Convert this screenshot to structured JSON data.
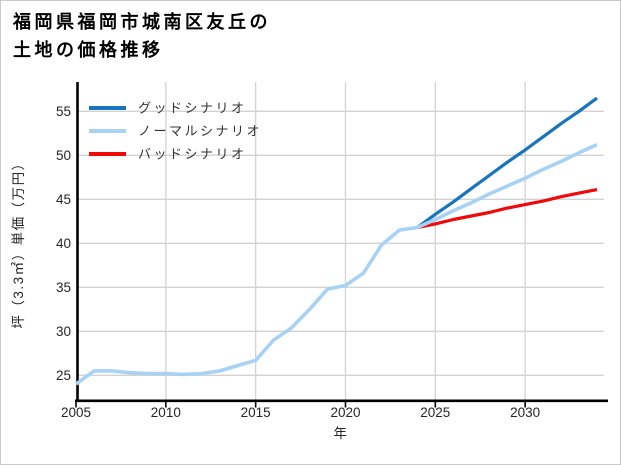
{
  "chart": {
    "title_lines": [
      "福岡県福岡市城南区友丘の",
      "土地の価格推移"
    ]
  },
  "chart_data": {
    "type": "line",
    "title": "福岡県福岡市城南区友丘の土地の価格推移",
    "xlabel": "年",
    "ylabel": "坪（3.3㎡）単価（万円）",
    "grid": true,
    "legend_position": "top-left",
    "xlim": [
      2005,
      2034.5
    ],
    "ylim": [
      22.1,
      58.3
    ],
    "x_ticks": [
      "2005",
      "2010",
      "2015",
      "2020",
      "2025",
      "2030"
    ],
    "x_tick_values": [
      2005,
      2010,
      2015,
      2020,
      2025,
      2030
    ],
    "y_ticks": [
      "25",
      "30",
      "35",
      "40",
      "45",
      "50",
      "55"
    ],
    "y_tick_values": [
      25,
      30,
      35,
      40,
      45,
      50,
      55
    ],
    "grid_color": "#d3d3d3",
    "axis_color": "#000000",
    "series": [
      {
        "name": "グッドシナリオ",
        "color": "#1874bc",
        "x": [
          2024,
          2025,
          2026,
          2027,
          2028,
          2029,
          2030,
          2031,
          2032,
          2033,
          2034
        ],
        "values": [
          41.8,
          43.3,
          44.7,
          46.2,
          47.7,
          49.2,
          50.6,
          52.1,
          53.6,
          55.0,
          56.5
        ]
      },
      {
        "name": "ノーマルシナリオ",
        "color": "#a8d2f4",
        "x": [
          2005,
          2006,
          2007,
          2008,
          2009,
          2010,
          2011,
          2012,
          2013,
          2014,
          2015,
          2016,
          2017,
          2018,
          2019,
          2020,
          2021,
          2022,
          2023,
          2024,
          2025,
          2026,
          2027,
          2028,
          2029,
          2030,
          2031,
          2032,
          2033,
          2034
        ],
        "values": [
          24.0,
          25.5,
          25.5,
          25.3,
          25.2,
          25.2,
          25.1,
          25.2,
          25.5,
          26.1,
          26.7,
          29.0,
          30.4,
          32.5,
          34.8,
          35.2,
          36.6,
          39.8,
          41.5,
          41.8,
          42.7,
          43.7,
          44.6,
          45.6,
          46.5,
          47.4,
          48.4,
          49.3,
          50.3,
          51.2
        ]
      },
      {
        "name": "バッドシナリオ",
        "color": "#ee0a0a",
        "x": [
          2024,
          2025,
          2026,
          2027,
          2028,
          2029,
          2030,
          2031,
          2032,
          2033,
          2034
        ],
        "values": [
          41.8,
          42.2,
          42.7,
          43.1,
          43.5,
          44.0,
          44.4,
          44.8,
          45.3,
          45.7,
          46.1
        ]
      }
    ]
  }
}
